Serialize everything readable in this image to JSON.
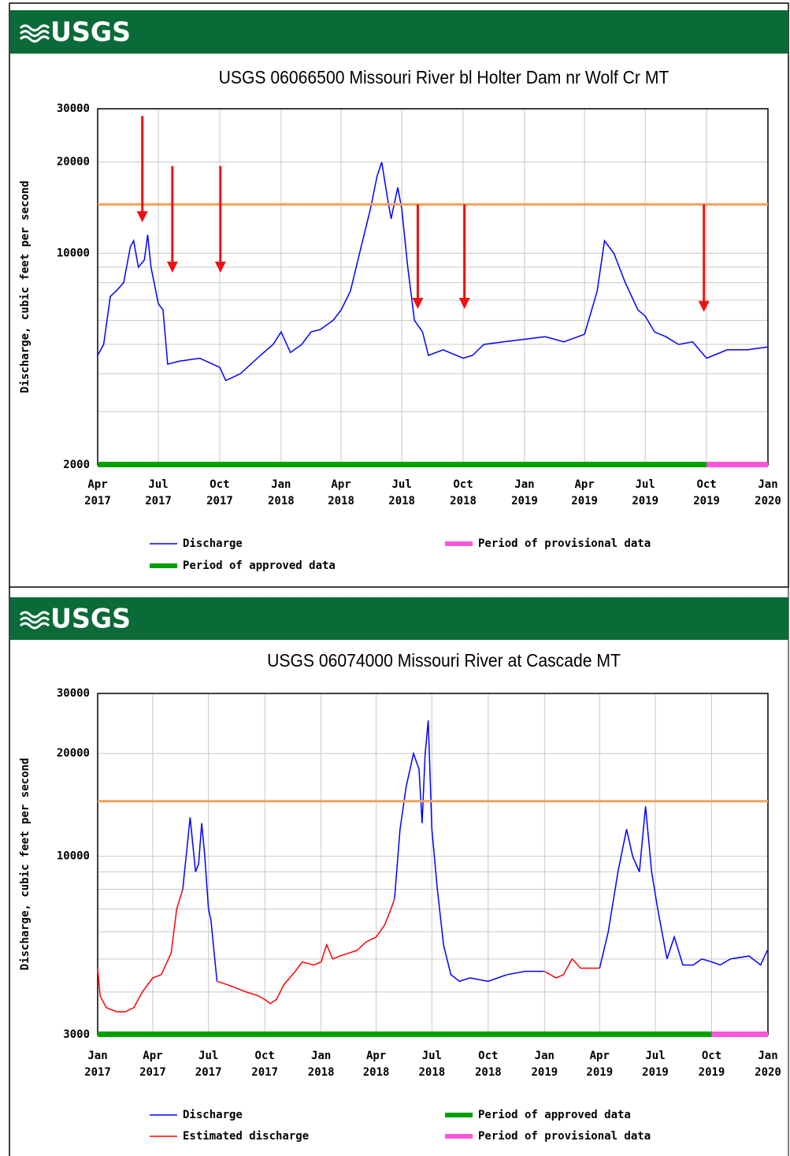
{
  "chart_data": [
    {
      "type": "line",
      "logo": "USGS",
      "title": "USGS 06066500 Missouri River bl Holter Dam nr Wolf Cr MT",
      "ylabel": "Discharge, cubic feet per second",
      "yscale": "log",
      "ylim": [
        2000,
        30000
      ],
      "yticks": [
        2000,
        10000,
        20000,
        30000
      ],
      "yminor_ticks": [
        3000,
        4000,
        5000,
        6000,
        7000,
        8000,
        9000
      ],
      "grid": true,
      "xlim": [
        "2017-04",
        "2020-01"
      ],
      "xticks": [
        {
          "value": "2017-04",
          "label": [
            "Apr",
            "2017"
          ]
        },
        {
          "value": "2017-07",
          "label": [
            "Jul",
            "2017"
          ]
        },
        {
          "value": "2017-10",
          "label": [
            "Oct",
            "2017"
          ]
        },
        {
          "value": "2018-01",
          "label": [
            "Jan",
            "2018"
          ]
        },
        {
          "value": "2018-04",
          "label": [
            "Apr",
            "2018"
          ]
        },
        {
          "value": "2018-07",
          "label": [
            "Jul",
            "2018"
          ]
        },
        {
          "value": "2018-10",
          "label": [
            "Oct",
            "2018"
          ]
        },
        {
          "value": "2019-01",
          "label": [
            "Jan",
            "2019"
          ]
        },
        {
          "value": "2019-04",
          "label": [
            "Apr",
            "2019"
          ]
        },
        {
          "value": "2019-07",
          "label": [
            "Jul",
            "2019"
          ]
        },
        {
          "value": "2019-10",
          "label": [
            "Oct",
            "2019"
          ]
        },
        {
          "value": "2020-01",
          "label": [
            "Jan",
            "2020"
          ]
        }
      ],
      "series": [
        {
          "name": "Discharge",
          "color": "#0000ff",
          "x": [
            "2017-04-01",
            "2017-04-10",
            "2017-04-20",
            "2017-05-01",
            "2017-05-10",
            "2017-05-20",
            "2017-05-25",
            "2017-06-01",
            "2017-06-10",
            "2017-06-15",
            "2017-06-20",
            "2017-07-01",
            "2017-07-08",
            "2017-07-15",
            "2017-08-01",
            "2017-09-01",
            "2017-10-01",
            "2017-10-10",
            "2017-11-01",
            "2017-12-01",
            "2017-12-20",
            "2018-01-01",
            "2018-01-15",
            "2018-02-01",
            "2018-02-15",
            "2018-03-01",
            "2018-03-20",
            "2018-04-01",
            "2018-04-15",
            "2018-05-01",
            "2018-05-15",
            "2018-05-25",
            "2018-06-01",
            "2018-06-10",
            "2018-06-15",
            "2018-06-25",
            "2018-07-01",
            "2018-07-10",
            "2018-07-20",
            "2018-08-01",
            "2018-08-10",
            "2018-09-01",
            "2018-10-01",
            "2018-10-15",
            "2018-11-01",
            "2018-12-01",
            "2019-01-01",
            "2019-02-01",
            "2019-03-01",
            "2019-04-01",
            "2019-04-20",
            "2019-05-01",
            "2019-05-15",
            "2019-06-01",
            "2019-06-20",
            "2019-07-01",
            "2019-07-15",
            "2019-08-01",
            "2019-08-20",
            "2019-09-10",
            "2019-10-01",
            "2019-11-01",
            "2019-12-01",
            "2019-12-31"
          ],
          "values": [
            4600,
            5000,
            7200,
            7600,
            8000,
            10500,
            11000,
            9000,
            9500,
            11500,
            9000,
            6800,
            6500,
            4300,
            4400,
            4500,
            4200,
            3800,
            4000,
            4600,
            5000,
            5500,
            4700,
            5000,
            5500,
            5600,
            6000,
            6500,
            7500,
            10500,
            14000,
            18000,
            20000,
            15000,
            13000,
            16500,
            14000,
            9000,
            6000,
            5500,
            4600,
            4800,
            4500,
            4600,
            5000,
            5100,
            5200,
            5300,
            5100,
            5400,
            7500,
            11000,
            10000,
            8000,
            6500,
            6200,
            5500,
            5300,
            5000,
            5100,
            4500,
            4800,
            4800,
            4900
          ]
        }
      ],
      "periods": [
        {
          "name": "Period of approved data",
          "color": "#00a000",
          "start": "2017-04",
          "end": "2019-10"
        },
        {
          "name": "Period of provisional data",
          "color": "#ff55dd",
          "start": "2019-10",
          "end": "2020-01"
        }
      ],
      "hline": {
        "value": 14500,
        "color": "#f4a05a"
      },
      "arrows": [
        {
          "x": "2017-06-07",
          "from": 28400,
          "to": 12650
        },
        {
          "x": "2017-07-22",
          "from": 19400,
          "to": 8630
        },
        {
          "x": "2017-10-02",
          "from": 19400,
          "to": 8630
        },
        {
          "x": "2018-07-25",
          "from": 14500,
          "to": 6550
        },
        {
          "x": "2018-10-03",
          "from": 14500,
          "to": 6550
        },
        {
          "x": "2019-09-27",
          "from": 14500,
          "to": 6400
        }
      ],
      "arrow_color": "#ee1111"
    },
    {
      "type": "line",
      "logo": "USGS",
      "title": "USGS 06074000 Missouri River at Cascade MT",
      "ylabel": "Discharge, cubic feet per second",
      "yscale": "log",
      "ylim": [
        3000,
        30000
      ],
      "yticks": [
        3000,
        10000,
        20000,
        30000
      ],
      "yminor_ticks": [
        4000,
        5000,
        6000,
        7000,
        8000,
        9000
      ],
      "grid": true,
      "xlim": [
        "2017-01",
        "2020-01"
      ],
      "xticks": [
        {
          "value": "2017-01",
          "label": [
            "Jan",
            "2017"
          ]
        },
        {
          "value": "2017-04",
          "label": [
            "Apr",
            "2017"
          ]
        },
        {
          "value": "2017-07",
          "label": [
            "Jul",
            "2017"
          ]
        },
        {
          "value": "2017-10",
          "label": [
            "Oct",
            "2017"
          ]
        },
        {
          "value": "2018-01",
          "label": [
            "Jan",
            "2018"
          ]
        },
        {
          "value": "2018-04",
          "label": [
            "Apr",
            "2018"
          ]
        },
        {
          "value": "2018-07",
          "label": [
            "Jul",
            "2018"
          ]
        },
        {
          "value": "2018-10",
          "label": [
            "Oct",
            "2018"
          ]
        },
        {
          "value": "2019-01",
          "label": [
            "Jan",
            "2019"
          ]
        },
        {
          "value": "2019-04",
          "label": [
            "Apr",
            "2019"
          ]
        },
        {
          "value": "2019-07",
          "label": [
            "Jul",
            "2019"
          ]
        },
        {
          "value": "2019-10",
          "label": [
            "Oct",
            "2019"
          ]
        },
        {
          "value": "2020-01",
          "label": [
            "Jan",
            "2020"
          ]
        }
      ],
      "series": [
        {
          "name": "Discharge",
          "color": "#0000ff",
          "x": [
            "2017-05-20",
            "2017-06-01",
            "2017-06-05",
            "2017-06-10",
            "2017-06-15",
            "2017-06-20",
            "2017-06-25",
            "2017-07-01",
            "2017-07-05",
            "2017-07-15",
            "2017-07-16",
            "2018-05-01",
            "2018-05-10",
            "2018-05-20",
            "2018-06-01",
            "2018-06-10",
            "2018-06-15",
            "2018-06-20",
            "2018-06-25",
            "2018-07-01",
            "2018-07-10",
            "2018-07-20",
            "2018-08-01",
            "2018-08-15",
            "2018-09-01",
            "2018-10-01",
            "2018-11-01",
            "2018-12-01",
            "2018-12-31",
            "2019-01-01",
            "2019-04-01",
            "2019-04-15",
            "2019-05-01",
            "2019-05-15",
            "2019-05-25",
            "2019-06-05",
            "2019-06-15",
            "2019-06-25",
            "2019-07-05",
            "2019-07-20",
            "2019-08-01",
            "2019-08-15",
            "2019-09-01",
            "2019-09-15",
            "2019-10-01",
            "2019-10-15",
            "2019-11-01",
            "2019-12-01",
            "2019-12-20",
            "2019-12-31"
          ],
          "values": [
            8000,
            13000,
            11000,
            9000,
            9500,
            12500,
            10000,
            7000,
            6500,
            4300,
            null,
            7500,
            12000,
            16000,
            20000,
            18000,
            12500,
            20000,
            25000,
            12000,
            8000,
            5500,
            4500,
            4300,
            4400,
            4300,
            4500,
            4600,
            4600,
            null,
            4700,
            6000,
            9000,
            12000,
            10000,
            9000,
            14000,
            9000,
            7000,
            5000,
            5800,
            4800,
            4800,
            5000,
            4900,
            4800,
            5000,
            5100,
            4800,
            5300
          ]
        },
        {
          "name": "Estimated discharge",
          "color": "#ff0000",
          "x": [
            "2017-01-01",
            "2017-01-05",
            "2017-01-15",
            "2017-02-01",
            "2017-02-15",
            "2017-03-01",
            "2017-03-15",
            "2017-04-01",
            "2017-04-15",
            "2017-05-01",
            "2017-05-10",
            "2017-05-20",
            "2017-05-21",
            "2017-07-15",
            "2017-08-01",
            "2017-09-01",
            "2017-09-20",
            "2017-10-01",
            "2017-10-10",
            "2017-10-20",
            "2017-11-01",
            "2017-11-20",
            "2017-12-01",
            "2017-12-20",
            "2018-01-01",
            "2018-01-10",
            "2018-01-20",
            "2018-02-01",
            "2018-03-01",
            "2018-03-15",
            "2018-04-01",
            "2018-04-15",
            "2018-04-25",
            "2018-05-01",
            "2018-05-02",
            "2019-01-01",
            "2019-01-20",
            "2019-02-01",
            "2019-02-15",
            "2019-03-01",
            "2019-03-15",
            "2019-04-01"
          ],
          "values": [
            4700,
            3900,
            3600,
            3500,
            3500,
            3600,
            4000,
            4400,
            4500,
            5200,
            7000,
            8000,
            null,
            4300,
            4200,
            4000,
            3900,
            3800,
            3700,
            3800,
            4200,
            4600,
            4900,
            4800,
            4900,
            5500,
            5000,
            5100,
            5300,
            5600,
            5800,
            6300,
            7000,
            7500,
            null,
            4600,
            4400,
            4500,
            5000,
            4700,
            4700,
            4700
          ]
        }
      ],
      "periods": [
        {
          "name": "Period of approved data",
          "color": "#00a000",
          "start": "2017-01",
          "end": "2019-10"
        },
        {
          "name": "Period of provisional data",
          "color": "#ff55dd",
          "start": "2019-10",
          "end": "2020-01"
        }
      ],
      "hline": {
        "value": 14500,
        "color": "#f4a05a"
      }
    }
  ]
}
